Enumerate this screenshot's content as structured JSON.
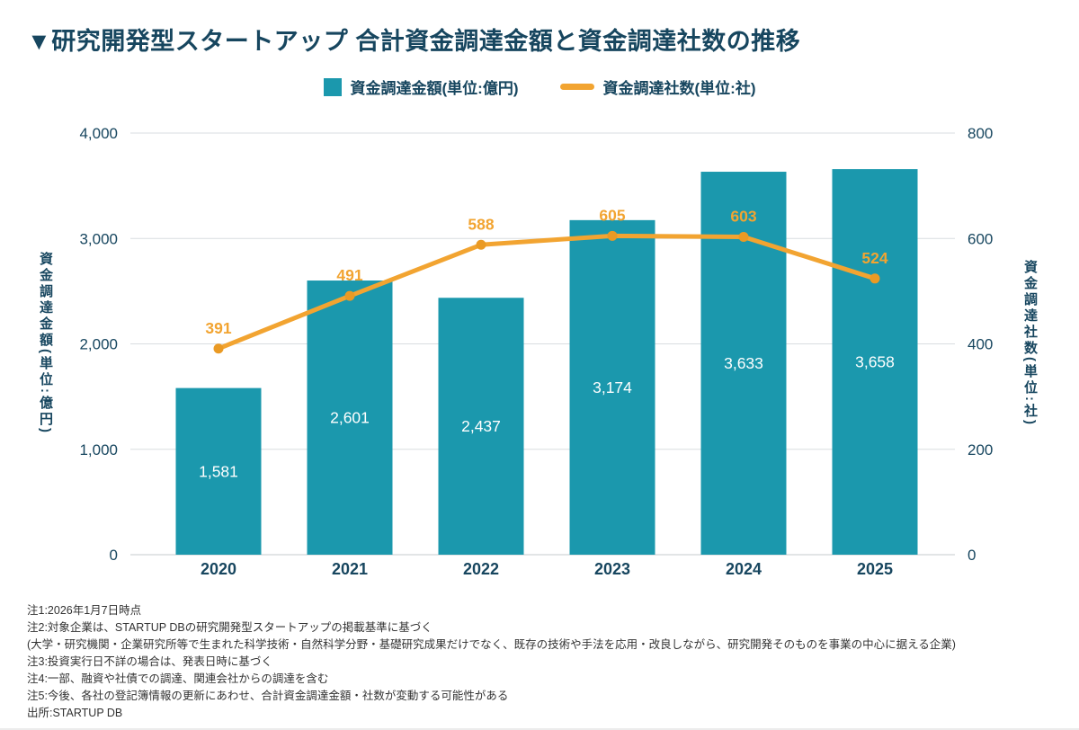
{
  "page": {
    "title": "▼研究開発型スタートアップ 合計資金調達金額と資金調達社数の推移"
  },
  "legend": [
    {
      "label": "資金調達金額(単位:億円)",
      "type": "bar"
    },
    {
      "label": "資金調達社数(単位:社)",
      "type": "line"
    }
  ],
  "chart_data": {
    "type": "bar+line",
    "categories": [
      "2020",
      "2021",
      "2022",
      "2023",
      "2024",
      "2025"
    ],
    "series": [
      {
        "name": "資金調達金額(単位:億円)",
        "type": "bar",
        "axis": "left",
        "values": [
          1581,
          2601,
          2437,
          3174,
          3633,
          3658
        ],
        "labels": [
          "1,581",
          "2,601",
          "2,437",
          "3,174",
          "3,633",
          "3,658"
        ]
      },
      {
        "name": "資金調達社数(単位:社)",
        "type": "line",
        "axis": "right",
        "values": [
          391,
          491,
          588,
          605,
          603,
          524
        ],
        "labels": [
          "391",
          "491",
          "588",
          "605",
          "603",
          "524"
        ]
      }
    ],
    "left_axis": {
      "label": "資金調達金額(単位:億円)",
      "min": 0,
      "max": 4000,
      "ticks": [
        0,
        1000,
        2000,
        3000,
        4000
      ],
      "tick_labels": [
        "0",
        "1,000",
        "2,000",
        "3,000",
        "4,000"
      ]
    },
    "right_axis": {
      "label": "資金調達社数(単位:社)",
      "min": 0,
      "max": 800,
      "ticks": [
        0,
        200,
        400,
        600,
        800
      ],
      "tick_labels": [
        "0",
        "200",
        "400",
        "600",
        "800"
      ]
    },
    "grid": true,
    "legend_position": "top"
  },
  "footnotes": [
    "注1:2026年1月7日時点",
    "注2:対象企業は、STARTUP DBの研究開発型スタートアップの掲載基準に基づく",
    "(大学・研究機関・企業研究所等で生まれた科学技術・自然科学分野・基礎研究成果だけでなく、既存の技術や手法を応用・改良しながら、研究開発そのものを事業の中心に据える企業)",
    "注3:投資実行日不詳の場合は、発表日時に基づく",
    "注4:一部、融資や社債での調達、関連会社からの調達を含む",
    "注5:今後、各社の登記簿情報の更新にあわせ、合計資金調達金額・社数が変動する可能性がある",
    "出所:STARTUP DB"
  ],
  "colors": {
    "bar": "#1b98ad",
    "line": "#f2a431",
    "point": "#ea9a24",
    "accent_dark": "#17465f",
    "grid": "#d9dde0",
    "baseline": "#c6cbce",
    "bar_label": "#ffffff",
    "footnote": "#333333"
  }
}
